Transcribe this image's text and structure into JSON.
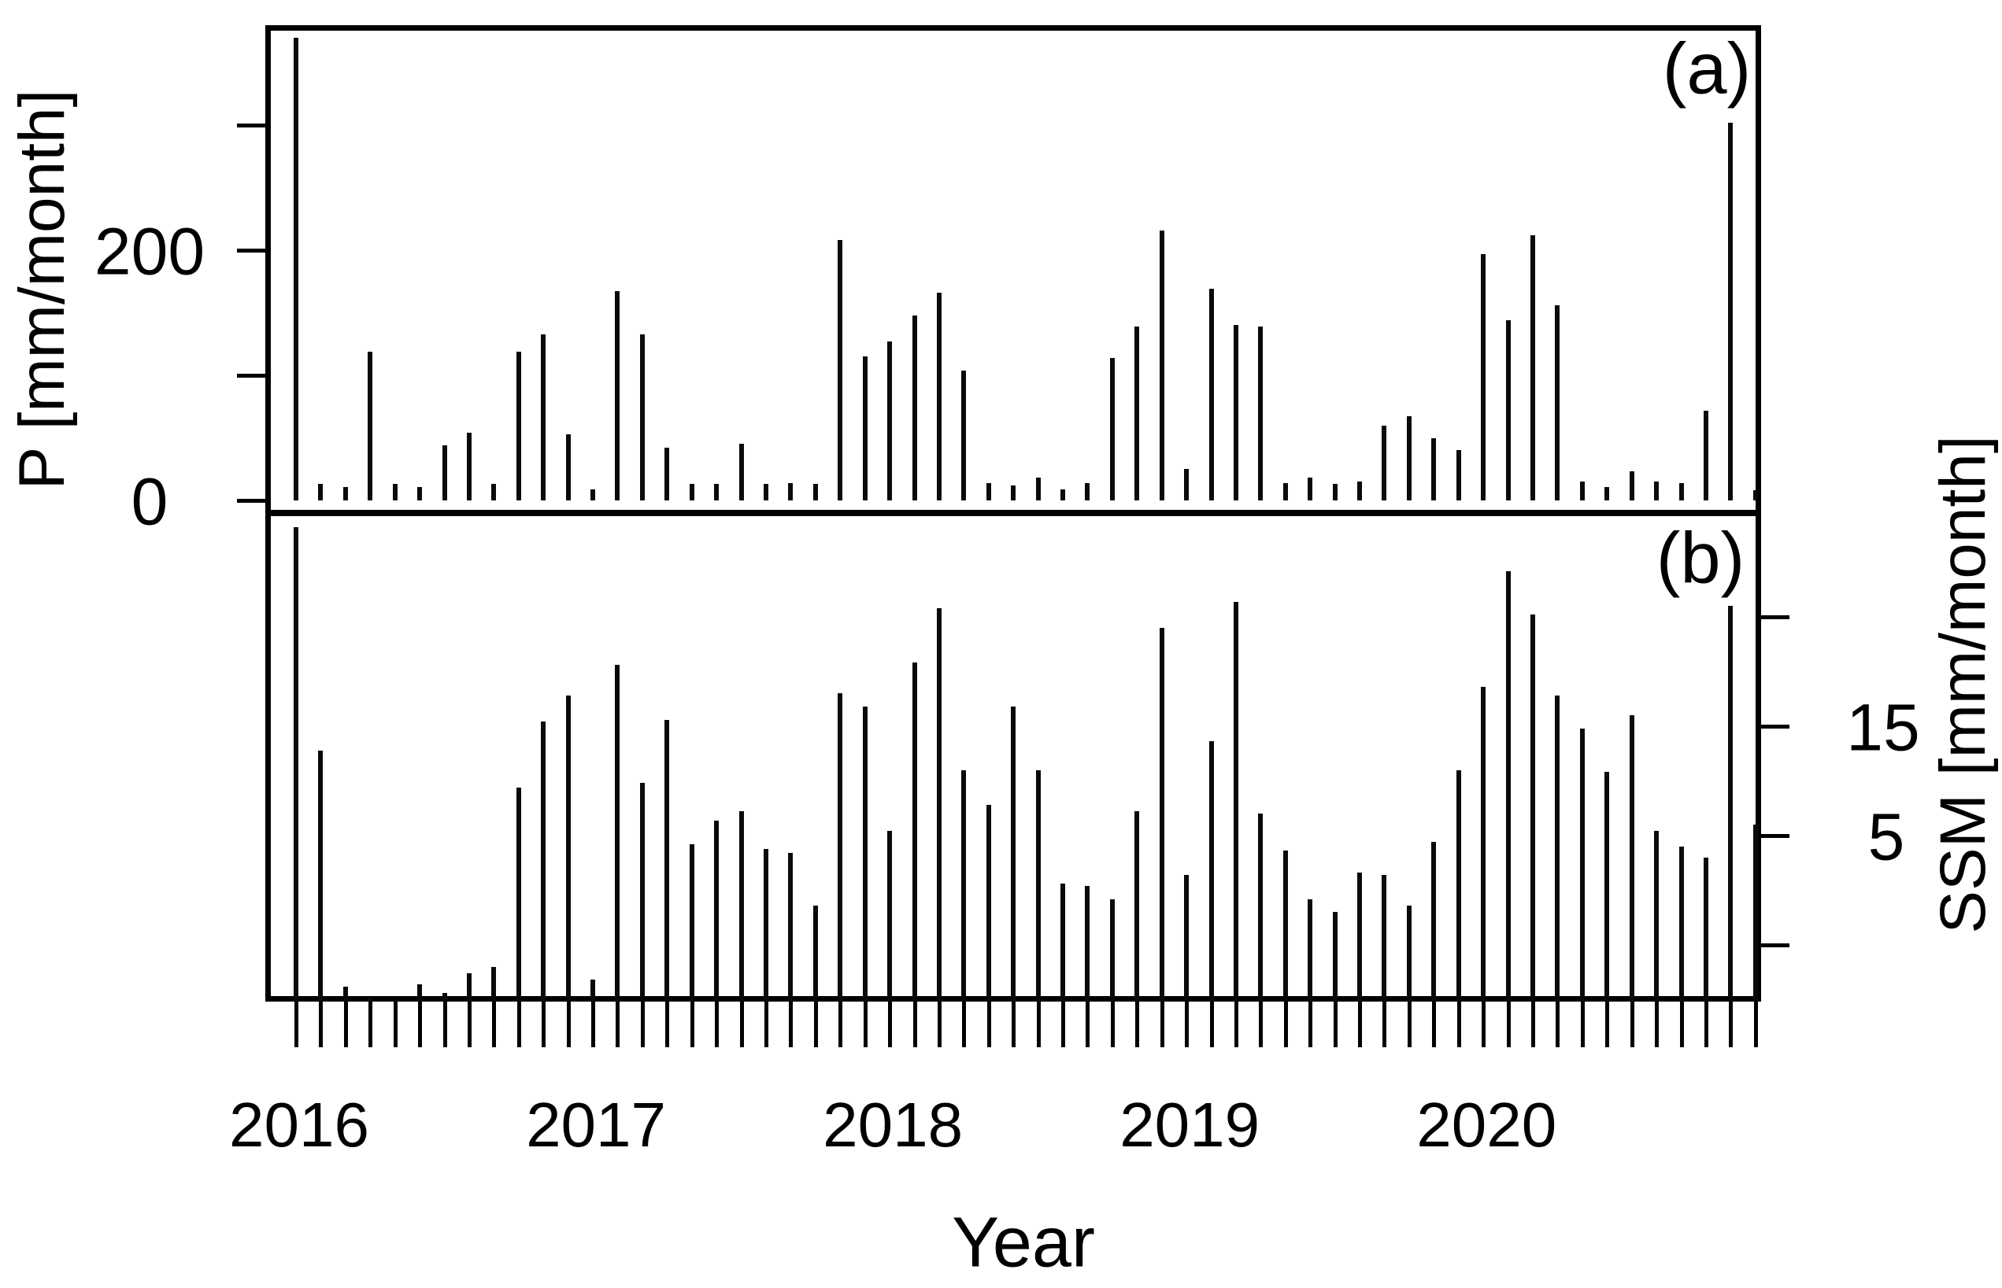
{
  "figure": {
    "panel_a_letter": "(a)",
    "panel_b_letter": "(b)",
    "x_axis_title": "Year",
    "left_axis_title": "P [mm/month]",
    "right_axis_title": "SSM [mm/month]",
    "left_tick_labels": {
      "v0": "0",
      "v200": "200"
    },
    "right_tick_labels": {
      "v5": "5",
      "v15": "15"
    },
    "year_labels": [
      "2016",
      "2017",
      "2018",
      "2019",
      "2020"
    ],
    "line_color": "#0a0a0a",
    "background_color": "#ffffff"
  },
  "chart_data": [
    {
      "type": "bar",
      "panel": "a",
      "ylabel": "P [mm/month]",
      "xlabel": "Year",
      "x_start": "2016-01",
      "x_step_months": 1,
      "ylim": [
        -12,
        385
      ],
      "yticks": [
        0,
        100,
        200,
        300
      ],
      "yticks_labeled": [
        0,
        200
      ],
      "legend": "none",
      "grid": false,
      "values": [
        370,
        13,
        11,
        119,
        13,
        11,
        44,
        54,
        13,
        119,
        133,
        53,
        9,
        167,
        133,
        42,
        13,
        13,
        45,
        13,
        14,
        13,
        208,
        115,
        127,
        148,
        166,
        104,
        14,
        12,
        18,
        9,
        14,
        114,
        139,
        216,
        25,
        169,
        140,
        139,
        14,
        18,
        13,
        15,
        60,
        67,
        50,
        40,
        197,
        144,
        212,
        156,
        15,
        11,
        23,
        15,
        14,
        72,
        302,
        8
      ]
    },
    {
      "type": "bar",
      "panel": "b",
      "ylabel": "SSM [mm/month]",
      "xlabel": "Year",
      "x_start": "2016-01",
      "x_step_months": 1,
      "ylim": [
        2.4,
        24.6
      ],
      "yticks": [
        5,
        10,
        15,
        20
      ],
      "yticks_labeled": [
        5,
        15
      ],
      "legend": "none",
      "grid": false,
      "values": [
        24.1,
        13.9,
        3.1,
        2.6,
        2.4,
        3.2,
        2.8,
        3.7,
        4.0,
        12.2,
        15.2,
        16.4,
        3.4,
        17.8,
        12.4,
        15.3,
        9.6,
        10.7,
        11.1,
        9.4,
        9.2,
        6.8,
        16.5,
        15.9,
        10.2,
        17.9,
        20.4,
        13.0,
        11.4,
        15.9,
        13.0,
        7.8,
        7.7,
        7.1,
        11.1,
        19.5,
        8.2,
        14.3,
        20.7,
        11.0,
        9.3,
        7.1,
        6.5,
        8.3,
        8.2,
        6.8,
        9.7,
        13.0,
        16.8,
        22.1,
        20.1,
        16.4,
        14.9,
        12.9,
        15.5,
        10.2,
        9.5,
        9.0,
        20.5,
        10.5
      ]
    }
  ]
}
